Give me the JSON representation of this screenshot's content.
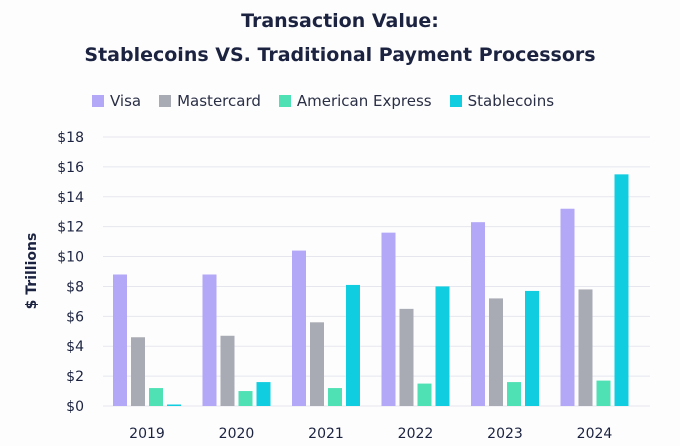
{
  "chart_data": {
    "type": "bar",
    "title": "Transaction Value:",
    "subtitle": "Stablecoins VS. Traditional Payment Processors",
    "xlabel": "",
    "ylabel": "$ Trillions",
    "ylim": [
      0,
      18
    ],
    "yticks": [
      "$0",
      "$2",
      "$4",
      "$6",
      "$8",
      "$10",
      "$12",
      "$14",
      "$16",
      "$18"
    ],
    "grid": true,
    "legend_position": "top",
    "categories": [
      "2019",
      "2020",
      "2021",
      "2022",
      "2023",
      "2024"
    ],
    "series": [
      {
        "name": "Visa",
        "color": "#b3a8f7",
        "values": [
          8.8,
          8.8,
          10.4,
          11.6,
          12.3,
          13.2
        ]
      },
      {
        "name": "Mastercard",
        "color": "#a9abb4",
        "values": [
          4.6,
          4.7,
          5.6,
          6.5,
          7.2,
          7.8
        ]
      },
      {
        "name": "American Express",
        "color": "#4fe0b4",
        "values": [
          1.2,
          1.0,
          1.2,
          1.5,
          1.6,
          1.7
        ]
      },
      {
        "name": "Stablecoins",
        "color": "#10cde0",
        "values": [
          0.1,
          1.6,
          8.1,
          8.0,
          7.7,
          15.5
        ]
      }
    ]
  }
}
